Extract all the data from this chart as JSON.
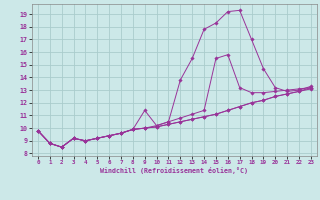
{
  "xlabel": "Windchill (Refroidissement éolien,°C)",
  "xlim": [
    -0.5,
    23.5
  ],
  "ylim": [
    7.8,
    19.8
  ],
  "xticks": [
    0,
    1,
    2,
    3,
    4,
    5,
    6,
    7,
    8,
    9,
    10,
    11,
    12,
    13,
    14,
    15,
    16,
    17,
    18,
    19,
    20,
    21,
    22,
    23
  ],
  "yticks": [
    8,
    9,
    10,
    11,
    12,
    13,
    14,
    15,
    16,
    17,
    18,
    19
  ],
  "bg_color": "#cce8e8",
  "grid_color": "#aacccc",
  "line_color": "#993399",
  "line_data": [
    {
      "x": [
        0,
        1,
        2,
        3,
        4,
        5,
        6,
        7,
        8,
        9,
        10,
        11,
        12,
        13,
        14,
        15,
        16,
        17,
        18,
        19,
        20,
        21,
        22,
        23
      ],
      "y": [
        9.8,
        8.8,
        8.5,
        9.2,
        9.0,
        9.2,
        9.4,
        9.6,
        9.9,
        10.0,
        10.1,
        10.3,
        10.5,
        10.7,
        10.9,
        11.1,
        11.4,
        11.7,
        12.0,
        12.2,
        12.5,
        12.7,
        12.9,
        13.1
      ]
    },
    {
      "x": [
        0,
        1,
        2,
        3,
        4,
        5,
        6,
        7,
        8,
        9,
        10,
        11,
        12,
        13,
        14,
        15,
        16,
        17,
        18,
        19,
        20,
        21,
        22,
        23
      ],
      "y": [
        9.8,
        8.8,
        8.5,
        9.2,
        9.0,
        9.2,
        9.4,
        9.6,
        9.9,
        10.0,
        10.1,
        10.3,
        10.5,
        10.7,
        10.9,
        11.1,
        11.4,
        11.7,
        12.0,
        12.2,
        12.5,
        12.7,
        12.9,
        13.2
      ]
    },
    {
      "x": [
        0,
        1,
        2,
        3,
        4,
        5,
        6,
        7,
        8,
        9,
        10,
        11,
        12,
        13,
        14,
        15,
        16,
        17,
        18,
        19,
        20,
        21,
        22,
        23
      ],
      "y": [
        9.8,
        8.8,
        8.5,
        9.2,
        9.0,
        9.2,
        9.4,
        9.6,
        9.9,
        11.4,
        10.2,
        10.5,
        13.8,
        15.5,
        17.8,
        18.3,
        19.2,
        19.3,
        17.0,
        14.7,
        13.2,
        12.9,
        13.0,
        13.3
      ]
    },
    {
      "x": [
        0,
        1,
        2,
        3,
        4,
        5,
        6,
        7,
        8,
        9,
        10,
        11,
        12,
        13,
        14,
        15,
        16,
        17,
        18,
        19,
        20,
        21,
        22,
        23
      ],
      "y": [
        9.8,
        8.8,
        8.5,
        9.2,
        9.0,
        9.2,
        9.4,
        9.6,
        9.9,
        10.0,
        10.2,
        10.5,
        10.8,
        11.1,
        11.4,
        15.5,
        15.8,
        13.2,
        12.8,
        12.8,
        12.9,
        13.0,
        13.1,
        13.2
      ]
    }
  ]
}
